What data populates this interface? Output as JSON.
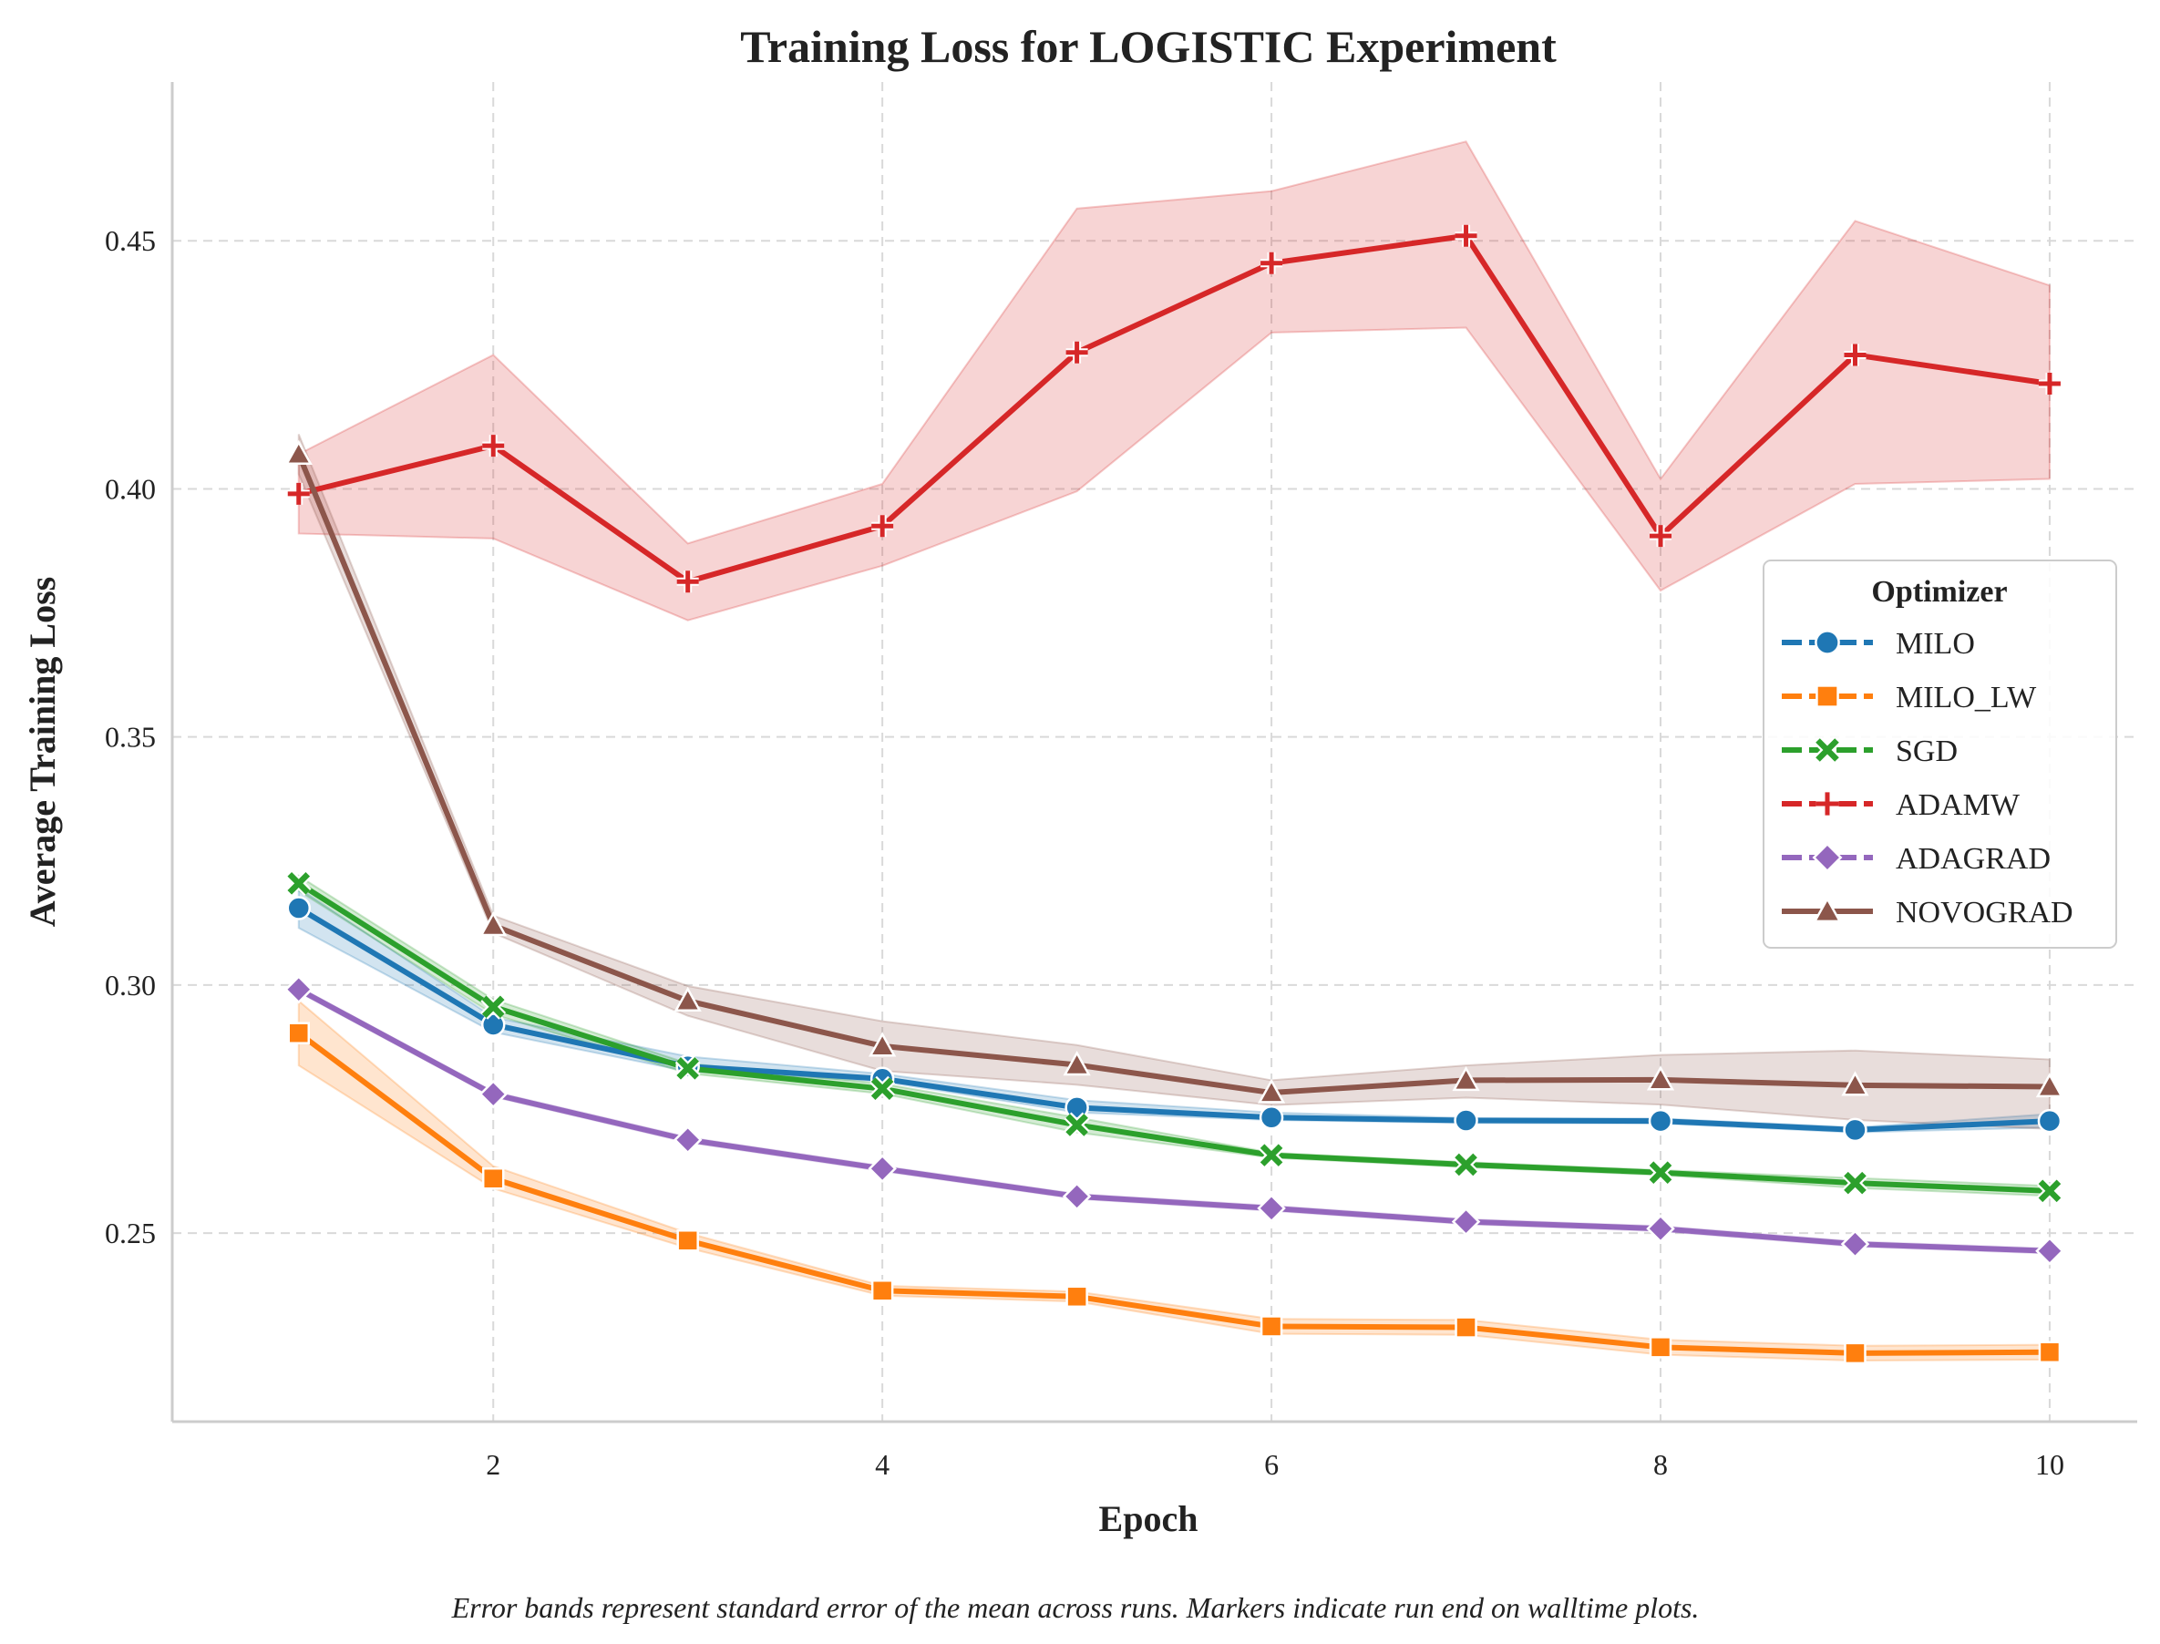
{
  "chart_data": {
    "type": "line",
    "title": "Training Loss for LOGISTIC Experiment",
    "xlabel": "Epoch",
    "ylabel": "Average Training Loss",
    "x": [
      1,
      2,
      3,
      4,
      5,
      6,
      7,
      8,
      9,
      10
    ],
    "xlim": [
      0.35,
      10.45
    ],
    "ylim": [
      0.212,
      0.482
    ],
    "xticks": [
      2,
      4,
      6,
      8,
      10
    ],
    "xtick_labels": [
      "2",
      "4",
      "6",
      "8",
      "10"
    ],
    "yticks": [
      0.25,
      0.3,
      0.35,
      0.4,
      0.45
    ],
    "ytick_labels": [
      "0.25",
      "0.30",
      "0.35",
      "0.40",
      "0.45"
    ],
    "grid": true,
    "legend_title": "Optimizer",
    "legend_position": "right",
    "series": [
      {
        "name": "MILO",
        "color": "#1f77b4",
        "marker": "circle",
        "dashed": true,
        "values": [
          0.3155,
          0.292,
          0.2836,
          0.2811,
          0.2753,
          0.2733,
          0.2727,
          0.2726,
          0.2708,
          0.2726
        ],
        "lower": [
          0.3115,
          0.2905,
          0.2826,
          0.2806,
          0.2743,
          0.2728,
          0.2722,
          0.2721,
          0.2703,
          0.2713
        ],
        "upper": [
          0.3195,
          0.2935,
          0.2856,
          0.2821,
          0.2768,
          0.2743,
          0.2732,
          0.2731,
          0.2713,
          0.274
        ]
      },
      {
        "name": "MILO_LW",
        "color": "#ff7f0e",
        "marker": "square",
        "dashed": true,
        "values": [
          0.2903,
          0.261,
          0.2485,
          0.2384,
          0.2372,
          0.2312,
          0.231,
          0.227,
          0.2258,
          0.226
        ],
        "lower": [
          0.2838,
          0.259,
          0.247,
          0.2374,
          0.2362,
          0.2297,
          0.2295,
          0.2255,
          0.2243,
          0.2245
        ],
        "upper": [
          0.2968,
          0.2635,
          0.25,
          0.2394,
          0.2382,
          0.2327,
          0.2325,
          0.2285,
          0.2273,
          0.2275
        ]
      },
      {
        "name": "SGD",
        "color": "#2ca02c",
        "marker": "x",
        "dashed": true,
        "values": [
          0.3205,
          0.2956,
          0.2832,
          0.2791,
          0.2718,
          0.2657,
          0.2638,
          0.2622,
          0.2601,
          0.2585
        ],
        "lower": [
          0.319,
          0.2941,
          0.2822,
          0.2781,
          0.2703,
          0.2652,
          0.2633,
          0.2617,
          0.2591,
          0.2575
        ],
        "upper": [
          0.322,
          0.2971,
          0.2842,
          0.2801,
          0.2733,
          0.2662,
          0.2643,
          0.2627,
          0.2611,
          0.2595
        ]
      },
      {
        "name": "ADAMW",
        "color": "#d62728",
        "marker": "plus",
        "dashed": true,
        "values": [
          0.399,
          0.4087,
          0.3813,
          0.3925,
          0.4275,
          0.4455,
          0.451,
          0.3905,
          0.427,
          0.4212
        ],
        "lower": [
          0.391,
          0.39,
          0.3735,
          0.3845,
          0.3995,
          0.4315,
          0.4325,
          0.3795,
          0.401,
          0.402
        ],
        "upper": [
          0.407,
          0.427,
          0.389,
          0.401,
          0.4565,
          0.46,
          0.47,
          0.402,
          0.454,
          0.441
        ]
      },
      {
        "name": "ADAGRAD",
        "color": "#9467bd",
        "marker": "diamond",
        "dashed": true,
        "values": [
          0.2991,
          0.278,
          0.2688,
          0.263,
          0.2574,
          0.255,
          0.2523,
          0.2509,
          0.2478,
          0.2464
        ],
        "lower": [
          0.2986,
          0.2775,
          0.2683,
          0.2625,
          0.2569,
          0.2545,
          0.2518,
          0.2504,
          0.2473,
          0.2459
        ],
        "upper": [
          0.2996,
          0.2785,
          0.2693,
          0.2635,
          0.2579,
          0.2555,
          0.2528,
          0.2514,
          0.2483,
          0.2469
        ]
      },
      {
        "name": "NOVOGRAD",
        "color": "#8c564b",
        "marker": "triangle",
        "dashed": false,
        "values": [
          0.407,
          0.312,
          0.2968,
          0.2877,
          0.2839,
          0.2783,
          0.2808,
          0.2809,
          0.2798,
          0.2795
        ],
        "lower": [
          0.403,
          0.3105,
          0.2938,
          0.2827,
          0.2799,
          0.2758,
          0.2773,
          0.2759,
          0.2728,
          0.271
        ],
        "upper": [
          0.411,
          0.314,
          0.2998,
          0.2927,
          0.2879,
          0.2808,
          0.2838,
          0.2859,
          0.2868,
          0.285
        ]
      }
    ]
  },
  "caption": "Error bands represent standard error of the mean across runs. Markers indicate run end on walltime plots."
}
